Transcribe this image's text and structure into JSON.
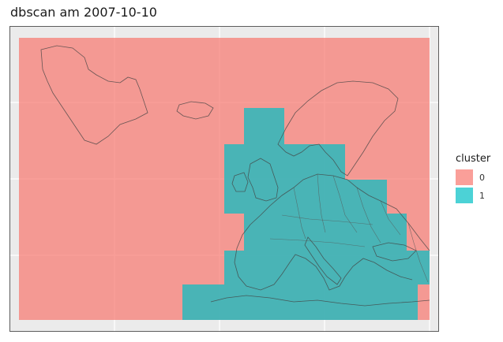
{
  "title": "dbscan am 2007-10-10",
  "legend": {
    "title": "cluster",
    "items": [
      {
        "label": "0",
        "color": "#F8766D"
      },
      {
        "label": "1",
        "color": "#00BFC4"
      }
    ]
  },
  "panel_background": "#EBEBEB",
  "gridline_color": "#FFFFFF",
  "border_color": "#3a3a3a"
}
